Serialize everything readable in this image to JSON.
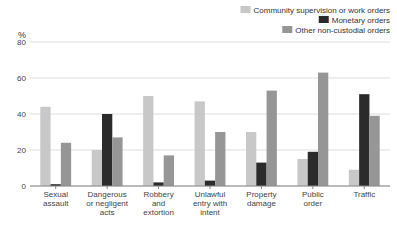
{
  "chart_data": {
    "type": "bar",
    "ylabel": "%",
    "categories": [
      "Sexual\nassault",
      "Dangerous\nor negligent\nacts",
      "Robbery\nand\nextortion",
      "Unlawful\nentry with\nintent",
      "Property\ndamage",
      "Public\norder",
      "Traffic"
    ],
    "series": [
      {
        "name": "Community supervision or work orders",
        "color": "#c8c8c8",
        "values": [
          44,
          20,
          50,
          47,
          30,
          15,
          9
        ]
      },
      {
        "name": "Monetary orders",
        "color": "#2b2b2b",
        "values": [
          1,
          40,
          2,
          3,
          13,
          19,
          51
        ]
      },
      {
        "name": "Other non-custodial orders",
        "color": "#969696",
        "values": [
          24,
          27,
          17,
          30,
          53,
          63,
          39
        ]
      }
    ],
    "ylim": [
      0,
      80
    ],
    "yticks": [
      0,
      20,
      40,
      60,
      80
    ],
    "grid": true,
    "legend": "upper right"
  }
}
